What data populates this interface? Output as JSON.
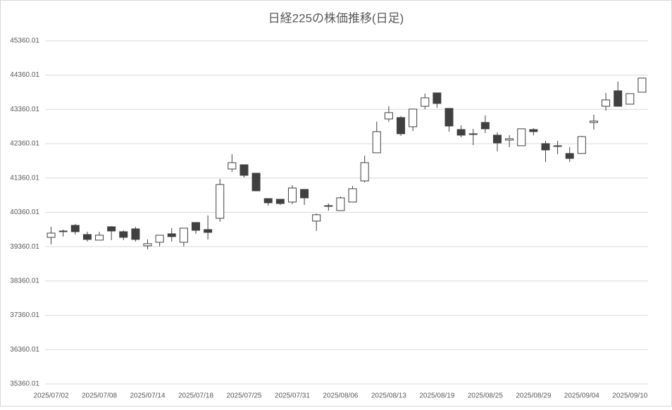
{
  "chart_data": {
    "type": "candlestick",
    "title": "日経225の株価推移(日足)",
    "categories": [
      "2025/07/02",
      null,
      null,
      null,
      "2025/07/08",
      null,
      null,
      null,
      "2025/07/14",
      null,
      null,
      null,
      "2025/07/18",
      null,
      null,
      null,
      "2025/07/25",
      null,
      null,
      null,
      "2025/07/31",
      null,
      null,
      null,
      "2025/08/06",
      null,
      null,
      null,
      "2025/08/13",
      null,
      null,
      null,
      "2025/08/19",
      null,
      null,
      null,
      "2025/08/25",
      null,
      null,
      null,
      "2025/08/29",
      null,
      null,
      null,
      "2025/09/04",
      null,
      null,
      null,
      "2025/09/10",
      null
    ],
    "open": [
      39632,
      39796,
      39981,
      39714,
      39550,
      39940,
      39796,
      39879,
      39386,
      39489,
      39735,
      39489,
      40064,
      39858,
      40187,
      41623,
      41747,
      41500,
      40761,
      40741,
      40659,
      41028,
      40105,
      40536,
      40412,
      40659,
      41275,
      42095,
      43081,
      43122,
      42855,
      43451,
      43841,
      43389,
      42773,
      42650,
      42979,
      42609,
      42465,
      42301,
      42773,
      42363,
      42301,
      42075,
      42075,
      42979,
      43451,
      43902,
      43512,
      43861
    ],
    "high": [
      39940,
      39858,
      40022,
      39796,
      39796,
      39960,
      39837,
      39940,
      39571,
      39694,
      39899,
      39899,
      40064,
      40269,
      41336,
      42054,
      41747,
      41500,
      40761,
      40741,
      41151,
      41028,
      40331,
      40618,
      40823,
      41131,
      42013,
      43000,
      43451,
      43163,
      43369,
      43820,
      43841,
      43389,
      42896,
      42794,
      43184,
      42691,
      42609,
      42794,
      42814,
      42445,
      42445,
      42260,
      42589,
      43205,
      43841,
      44169,
      43820,
      44272
    ],
    "low": [
      39427,
      39653,
      39714,
      39509,
      39550,
      39550,
      39550,
      39509,
      39283,
      39365,
      39509,
      39365,
      39735,
      39571,
      40084,
      41541,
      41377,
      40987,
      40556,
      40577,
      40597,
      40577,
      39817,
      40412,
      40412,
      40659,
      41233,
      42095,
      43000,
      42589,
      42732,
      43369,
      43410,
      42712,
      42548,
      42321,
      42671,
      42137,
      42260,
      42301,
      42609,
      41829,
      42054,
      41829,
      42075,
      42773,
      43328,
      43451,
      43512,
      43861
    ],
    "close": [
      39755,
      39817,
      39796,
      39571,
      39694,
      39817,
      39632,
      39571,
      39448,
      39694,
      39653,
      39899,
      39837,
      39776,
      41172,
      41808,
      41439,
      40987,
      40638,
      40617,
      41069,
      40782,
      40290,
      40556,
      40782,
      41049,
      41808,
      42712,
      43266,
      42650,
      43369,
      43697,
      43533,
      42876,
      42609,
      42630,
      42794,
      42383,
      42506,
      42794,
      42712,
      42178,
      42281,
      41931,
      42568,
      43020,
      43636,
      43451,
      43820,
      44272
    ],
    "up_color": "#ffffff",
    "down_color": "#404040",
    "line_color": "#404040",
    "ylim": [
      35360.01,
      45460
    ],
    "yticks": [
      35360.01,
      36360.01,
      37360.01,
      38360.01,
      39360.01,
      40360.01,
      41360.01,
      42360.01,
      43360.01,
      44360.01,
      45360.01
    ],
    "grid": true
  }
}
